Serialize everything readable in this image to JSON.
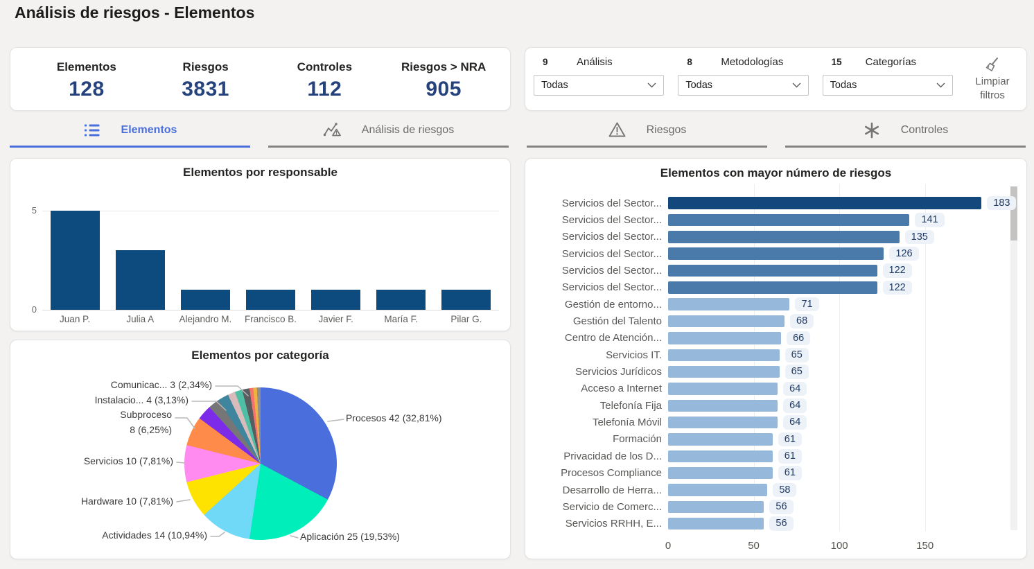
{
  "page": {
    "title": "Análisis de riesgos - Elementos"
  },
  "kpis": [
    {
      "label": "Elementos",
      "value": "128"
    },
    {
      "label": "Riesgos",
      "value": "3831"
    },
    {
      "label": "Controles",
      "value": "112"
    },
    {
      "label": "Riesgos > NRA",
      "value": "905"
    }
  ],
  "filters": {
    "groups": [
      {
        "count": "9",
        "label": "Análisis",
        "value": "Todas"
      },
      {
        "count": "8",
        "label": "Metodologías",
        "value": "Todas"
      },
      {
        "count": "15",
        "label": "Categorías",
        "value": "Todas"
      }
    ],
    "clear_line1": "Limpiar",
    "clear_line2": "filtros"
  },
  "tabs": [
    {
      "label": "Elementos",
      "icon": "list-icon",
      "active": true
    },
    {
      "label": "Análisis de riesgos",
      "icon": "risk-analysis-icon",
      "active": false
    },
    {
      "label": "Riesgos",
      "icon": "warning-icon",
      "active": false
    },
    {
      "label": "Controles",
      "icon": "controls-icon",
      "active": false
    }
  ],
  "chart_data": [
    {
      "type": "bar",
      "title": "Elementos por responsable",
      "categories": [
        "Juan P.",
        "Julia A",
        "Alejandro M.",
        "Francisco B.",
        "Javier F.",
        "María F.",
        "Pilar G."
      ],
      "values": [
        5,
        3,
        1,
        1,
        1,
        1,
        1
      ],
      "ylim": [
        0,
        5
      ],
      "yticks": [
        0,
        5
      ],
      "bar_color": "#0d4a7e",
      "grid": true
    },
    {
      "type": "pie",
      "title": "Elementos por categoría",
      "slices": [
        {
          "label": "Procesos",
          "value": 42,
          "pct": "32,81%",
          "display": "Procesos 42 (32,81%)",
          "color": "#4a6fdd"
        },
        {
          "label": "Aplicación",
          "value": 25,
          "pct": "19,53%",
          "display": "Aplicación 25 (19,53%)",
          "color": "#00efba"
        },
        {
          "label": "Actividades",
          "value": 14,
          "pct": "10,94%",
          "display": "Actividades 14 (10,94%)",
          "color": "#6fd9f7"
        },
        {
          "label": "Hardware",
          "value": 10,
          "pct": "7,81%",
          "display": "Hardware 10 (7,81%)",
          "color": "#ffe300"
        },
        {
          "label": "Servicios",
          "value": 10,
          "pct": "7,81%",
          "display": "Servicios 10 (7,81%)",
          "color": "#ff8bf0"
        },
        {
          "label": "Subproceso",
          "value": 8,
          "pct": "6,25%",
          "display": "Subproceso",
          "display2": "8 (6,25%)",
          "color": "#ff8b4a"
        },
        {
          "label": "Instalacio...",
          "value": 4,
          "pct": "3,13%",
          "display": "Instalacio... 4 (3,13%)",
          "color": "#7c2be8"
        },
        {
          "label": "Comunicac...",
          "value": 3,
          "pct": "2,34%",
          "display": "Comunicac... 3 (2,34%)",
          "color": "#767676"
        },
        {
          "label": "",
          "value": 3,
          "color": "#40859e"
        },
        {
          "label": "",
          "value": 2,
          "color": "#d9bbbb"
        },
        {
          "label": "",
          "value": 2,
          "color": "#4ebfa4"
        },
        {
          "label": "",
          "value": 2,
          "color": "#595d5f"
        },
        {
          "label": "",
          "value": 1,
          "color": "#f5736c"
        },
        {
          "label": "",
          "value": 1,
          "color": "#edb23f"
        },
        {
          "label": "",
          "value": 1,
          "color": "#8f8f8f"
        }
      ]
    },
    {
      "type": "bar-horizontal",
      "title": "Elementos con mayor número de riesgos",
      "categories": [
        "Servicios del Sector...",
        "Servicios del Sector...",
        "Servicios del Sector...",
        "Servicios del Sector...",
        "Servicios del Sector...",
        "Servicios del Sector...",
        "Gestión de entorno...",
        "Gestión del Talento",
        "Centro de Atención...",
        "Servicios IT.",
        "Servicios Jurídicos",
        "Acceso a Internet",
        "Telefonía Fija",
        "Telefonía Móvil",
        "Formación",
        "Privacidad de los D...",
        "Procesos Compliance",
        "Desarrollo de Herra...",
        "Servicio de Comerc...",
        "Servicios RRHH, E..."
      ],
      "values": [
        183,
        141,
        135,
        126,
        122,
        122,
        71,
        68,
        66,
        65,
        65,
        64,
        64,
        64,
        61,
        61,
        61,
        58,
        56,
        56
      ],
      "xticks": [
        0,
        50,
        100,
        150
      ],
      "xmax": 193,
      "colors": {
        "dark": "#14477c",
        "medium": "#4a7aa9",
        "light": "#96b8da"
      },
      "thresholds": {
        "dark": 150,
        "medium": 100
      }
    }
  ]
}
